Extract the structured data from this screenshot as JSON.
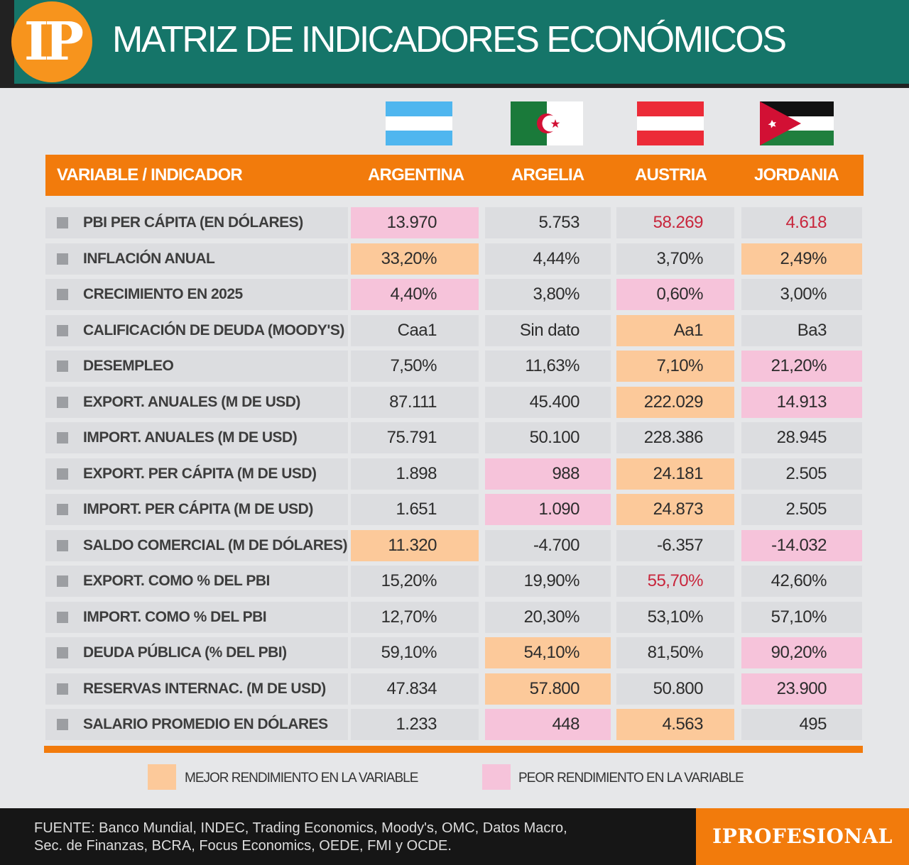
{
  "header": {
    "logo": "IP",
    "title": "MATRIZ DE INDICADORES ECONÓMICOS"
  },
  "chart_data": {
    "type": "table",
    "title": "MATRIZ DE INDICADORES ECONÓMICOS",
    "columns": [
      "VARIABLE / INDICADOR",
      "ARGENTINA",
      "ARGELIA",
      "AUSTRIA",
      "JORDANIA"
    ],
    "flags": [
      "argentina-flag",
      "algeria-flag",
      "austria-flag",
      "jordan-flag"
    ],
    "rows": [
      {
        "label": "PBI PER CÁPITA (EN DÓLARES)",
        "values": [
          "13.970",
          "5.753",
          "58.269",
          "4.618"
        ],
        "marks": [
          "worst",
          "",
          "red",
          "red"
        ]
      },
      {
        "label": "INFLACIÓN ANUAL",
        "values": [
          "33,20%",
          "4,44%",
          "3,70%",
          "2,49%"
        ],
        "marks": [
          "best",
          "",
          "",
          "best"
        ]
      },
      {
        "label": "CRECIMIENTO EN 2025",
        "values": [
          "4,40%",
          "3,80%",
          "0,60%",
          "3,00%"
        ],
        "marks": [
          "worst",
          "",
          "worst",
          ""
        ]
      },
      {
        "label": "CALIFICACIÓN DE DEUDA (MOODY'S)",
        "values": [
          "Caa1",
          "Sin dato",
          "Aa1",
          "Ba3"
        ],
        "marks": [
          "",
          "",
          "best",
          ""
        ]
      },
      {
        "label": "DESEMPLEO",
        "values": [
          "7,50%",
          "11,63%",
          "7,10%",
          "21,20%"
        ],
        "marks": [
          "",
          "",
          "best",
          "worst"
        ]
      },
      {
        "label": "EXPORT. ANUALES (M DE USD)",
        "values": [
          "87.111",
          "45.400",
          "222.029",
          "14.913"
        ],
        "marks": [
          "",
          "",
          "best",
          "worst"
        ]
      },
      {
        "label": "IMPORT. ANUALES (M DE USD)",
        "values": [
          "75.791",
          "50.100",
          "228.386",
          "28.945"
        ],
        "marks": [
          "",
          "",
          "",
          ""
        ]
      },
      {
        "label": "EXPORT. PER CÁPITA (M DE USD)",
        "values": [
          "1.898",
          "988",
          "24.181",
          "2.505"
        ],
        "marks": [
          "",
          "worst",
          "best",
          ""
        ]
      },
      {
        "label": "IMPORT. PER CÁPITA (M DE USD)",
        "values": [
          "1.651",
          "1.090",
          "24.873",
          "2.505"
        ],
        "marks": [
          "",
          "worst",
          "best",
          ""
        ]
      },
      {
        "label": "SALDO COMERCIAL (M DE DÓLARES)",
        "values": [
          "11.320",
          "-4.700",
          "-6.357",
          "-14.032"
        ],
        "marks": [
          "best",
          "",
          "",
          "worst"
        ]
      },
      {
        "label": "EXPORT. COMO % DEL PBI",
        "values": [
          "15,20%",
          "19,90%",
          "55,70%",
          "42,60%"
        ],
        "marks": [
          "",
          "",
          "red",
          ""
        ]
      },
      {
        "label": "IMPORT. COMO % DEL PBI",
        "values": [
          "12,70%",
          "20,30%",
          "53,10%",
          "57,10%"
        ],
        "marks": [
          "",
          "",
          "",
          ""
        ]
      },
      {
        "label": "DEUDA PÚBLICA (% DEL PBI)",
        "values": [
          "59,10%",
          "54,10%",
          "81,50%",
          "90,20%"
        ],
        "marks": [
          "",
          "best",
          "",
          "worst"
        ]
      },
      {
        "label": "RESERVAS INTERNAC. (M DE USD)",
        "values": [
          "47.834",
          "57.800",
          "50.800",
          "23.900"
        ],
        "marks": [
          "",
          "best",
          "",
          "worst"
        ]
      },
      {
        "label": "SALARIO PROMEDIO EN DÓLARES",
        "values": [
          "1.233",
          "448",
          "4.563",
          "495"
        ],
        "marks": [
          "",
          "worst",
          "best",
          ""
        ]
      }
    ],
    "legend": [
      {
        "key": "best",
        "label": "MEJOR RENDIMIENTO EN LA VARIABLE",
        "color": "#fcc99a"
      },
      {
        "key": "worst",
        "label": "PEOR RENDIMIENTO EN LA VARIABLE",
        "color": "#f6c3da"
      }
    ],
    "colors": {
      "best": "#fcc99a",
      "worst": "#f6c3da",
      "highlight_text": "#c8263c"
    }
  },
  "footer": {
    "source_line1": "FUENTE: Banco Mundial, INDEC, Trading Economics, Moody's, OMC, Datos Macro,",
    "source_line2": "Sec. de Finanzas, BCRA, Focus Economics, OEDE, FMI y OCDE.",
    "brand": "IPROFESIONAL"
  }
}
